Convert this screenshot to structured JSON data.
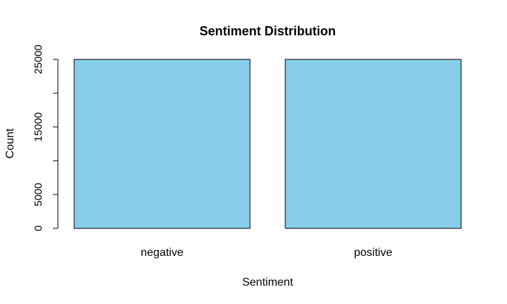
{
  "chart_data": {
    "type": "bar",
    "title": "Sentiment Distribution",
    "xlabel": "Sentiment",
    "ylabel": "Count",
    "categories": [
      "negative",
      "positive"
    ],
    "values": [
      25000,
      25000
    ],
    "ylim": [
      0,
      25000
    ],
    "yticks": [
      0,
      5000,
      10000,
      15000,
      20000,
      25000
    ],
    "ytick_labels": [
      "0",
      "5000",
      "",
      "15000",
      "",
      "25000"
    ],
    "grid": false,
    "legend": "none",
    "bar_color": "#87CEEB",
    "bar_border_color": "#000000"
  }
}
